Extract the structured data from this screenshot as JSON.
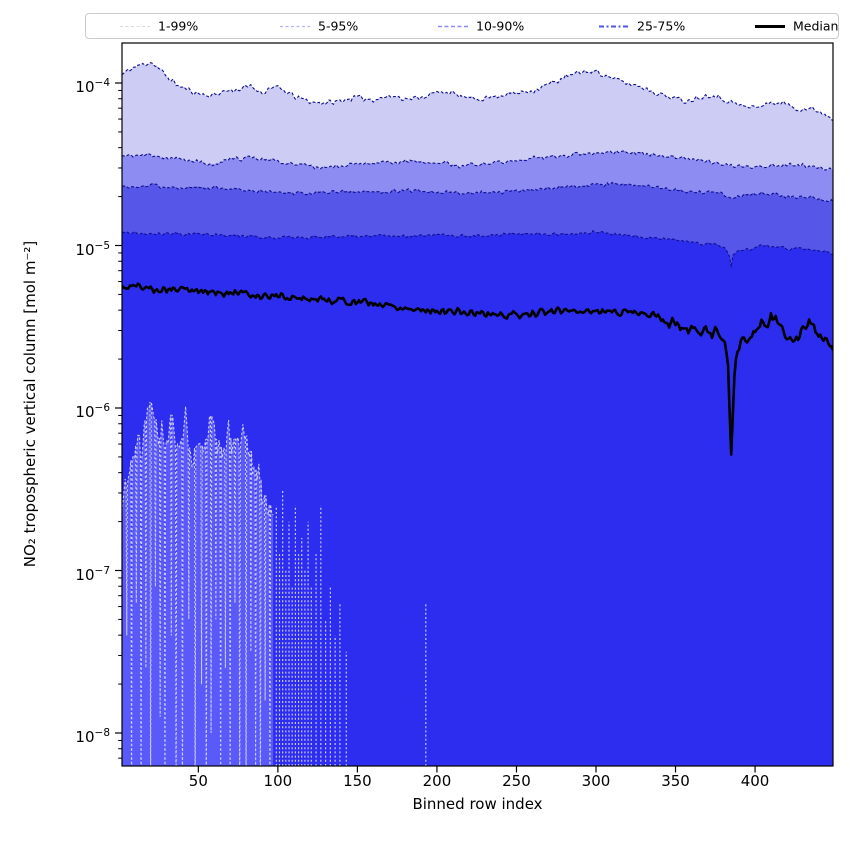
{
  "chart": {
    "xlabel": "Binned row index",
    "ylabel": "NO₂ tropospheric vertical column [mol m⁻²]",
    "x_ticks": [
      50,
      100,
      150,
      200,
      250,
      300,
      350,
      400
    ],
    "y_tick_exponents": [
      -4,
      -5,
      -6,
      -7,
      -8
    ],
    "axis_color": "#000000"
  },
  "chart_data": {
    "type": "area",
    "subtype": "percentile-fan",
    "title": "",
    "xlabel": "Binned row index",
    "ylabel": "NO₂ tropospheric vertical column [mol m⁻²]",
    "x_range": [
      2,
      449
    ],
    "ylim": [
      6.3e-09,
      0.000176
    ],
    "yscale": "log",
    "values_are_log10": true,
    "grid": false,
    "legend_position": "top",
    "legend": [
      {
        "label": "1-99%",
        "color": "#d7d7ee",
        "dash": "3,2.5",
        "width": 1.1
      },
      {
        "label": "5-95%",
        "color": "#b6b6f4",
        "dash": "3,2.5",
        "width": 1.2
      },
      {
        "label": "10-90%",
        "color": "#8b8bf4",
        "dash": "4,2.5",
        "width": 1.4
      },
      {
        "label": "25-75%",
        "color": "#5353e4",
        "dash": "5,2.5,2,2.5",
        "width": 1.9
      },
      {
        "label": "Median",
        "color": "#000000",
        "dash": "",
        "width": 3
      }
    ],
    "edge_color": "#0f0f8f",
    "bands": [
      {
        "name": "p99",
        "fill": "#ccccf5",
        "noise": 0.02,
        "anchors": [
          [
            2,
            -3.95
          ],
          [
            8,
            -3.91
          ],
          [
            14,
            -3.89
          ],
          [
            20,
            -3.87
          ],
          [
            24,
            -3.9
          ],
          [
            30,
            -3.96
          ],
          [
            38,
            -4.02
          ],
          [
            48,
            -4.06
          ],
          [
            58,
            -4.08
          ],
          [
            66,
            -4.05
          ],
          [
            75,
            -4.04
          ],
          [
            83,
            -4.02
          ],
          [
            90,
            -4.06
          ],
          [
            97,
            -4.02
          ],
          [
            104,
            -4.05
          ],
          [
            112,
            -4.09
          ],
          [
            122,
            -4.12
          ],
          [
            135,
            -4.12
          ],
          [
            148,
            -4.09
          ],
          [
            160,
            -4.1
          ],
          [
            172,
            -4.08
          ],
          [
            184,
            -4.1
          ],
          [
            196,
            -4.07
          ],
          [
            205,
            -4.05
          ],
          [
            214,
            -4.08
          ],
          [
            222,
            -4.1
          ],
          [
            232,
            -4.09
          ],
          [
            242,
            -4.07
          ],
          [
            252,
            -4.06
          ],
          [
            262,
            -4.04
          ],
          [
            272,
            -4.0
          ],
          [
            282,
            -3.96
          ],
          [
            292,
            -3.93
          ],
          [
            300,
            -3.93
          ],
          [
            308,
            -3.96
          ],
          [
            318,
            -4.0
          ],
          [
            328,
            -4.02
          ],
          [
            338,
            -4.06
          ],
          [
            348,
            -4.09
          ],
          [
            356,
            -4.11
          ],
          [
            364,
            -4.09
          ],
          [
            372,
            -4.07
          ],
          [
            380,
            -4.1
          ],
          [
            388,
            -4.13
          ],
          [
            396,
            -4.15
          ],
          [
            404,
            -4.14
          ],
          [
            412,
            -4.12
          ],
          [
            420,
            -4.13
          ],
          [
            428,
            -4.16
          ],
          [
            436,
            -4.16
          ],
          [
            442,
            -4.18
          ],
          [
            449,
            -4.22
          ]
        ]
      },
      {
        "name": "p95",
        "fill": "#8c8cf2",
        "noise": 0.016,
        "anchors": [
          [
            2,
            -4.45
          ],
          [
            15,
            -4.44
          ],
          [
            30,
            -4.46
          ],
          [
            45,
            -4.48
          ],
          [
            60,
            -4.5
          ],
          [
            72,
            -4.47
          ],
          [
            85,
            -4.46
          ],
          [
            100,
            -4.48
          ],
          [
            112,
            -4.5
          ],
          [
            125,
            -4.52
          ],
          [
            140,
            -4.51
          ],
          [
            155,
            -4.5
          ],
          [
            170,
            -4.49
          ],
          [
            185,
            -4.48
          ],
          [
            200,
            -4.49
          ],
          [
            215,
            -4.51
          ],
          [
            230,
            -4.5
          ],
          [
            245,
            -4.48
          ],
          [
            260,
            -4.46
          ],
          [
            275,
            -4.45
          ],
          [
            290,
            -4.44
          ],
          [
            305,
            -4.43
          ],
          [
            320,
            -4.42
          ],
          [
            335,
            -4.44
          ],
          [
            350,
            -4.46
          ],
          [
            365,
            -4.48
          ],
          [
            380,
            -4.5
          ],
          [
            395,
            -4.52
          ],
          [
            410,
            -4.51
          ],
          [
            425,
            -4.5
          ],
          [
            437,
            -4.52
          ],
          [
            449,
            -4.54
          ]
        ]
      },
      {
        "name": "p90",
        "fill": "#5656e9",
        "noise": 0.014,
        "anchors": [
          [
            2,
            -4.64
          ],
          [
            20,
            -4.63
          ],
          [
            40,
            -4.65
          ],
          [
            60,
            -4.64
          ],
          [
            80,
            -4.66
          ],
          [
            100,
            -4.67
          ],
          [
            120,
            -4.68
          ],
          [
            140,
            -4.67
          ],
          [
            160,
            -4.67
          ],
          [
            180,
            -4.66
          ],
          [
            200,
            -4.67
          ],
          [
            220,
            -4.68
          ],
          [
            240,
            -4.67
          ],
          [
            260,
            -4.66
          ],
          [
            280,
            -4.64
          ],
          [
            300,
            -4.63
          ],
          [
            320,
            -4.62
          ],
          [
            335,
            -4.64
          ],
          [
            350,
            -4.66
          ],
          [
            365,
            -4.67
          ],
          [
            378,
            -4.68
          ],
          [
            386,
            -4.71
          ],
          [
            394,
            -4.69
          ],
          [
            404,
            -4.68
          ],
          [
            414,
            -4.69
          ],
          [
            424,
            -4.7
          ],
          [
            436,
            -4.71
          ],
          [
            449,
            -4.73
          ]
        ]
      },
      {
        "name": "p75",
        "fill": "#2d2df0",
        "noise": 0.012,
        "anchors": [
          [
            2,
            -4.92
          ],
          [
            25,
            -4.93
          ],
          [
            50,
            -4.93
          ],
          [
            75,
            -4.94
          ],
          [
            100,
            -4.95
          ],
          [
            125,
            -4.95
          ],
          [
            150,
            -4.94
          ],
          [
            175,
            -4.94
          ],
          [
            200,
            -4.94
          ],
          [
            225,
            -4.94
          ],
          [
            250,
            -4.93
          ],
          [
            275,
            -4.93
          ],
          [
            300,
            -4.92
          ],
          [
            315,
            -4.93
          ],
          [
            330,
            -4.95
          ],
          [
            345,
            -4.96
          ],
          [
            360,
            -4.98
          ],
          [
            372,
            -4.99
          ],
          [
            381,
            -5.01
          ],
          [
            384,
            -5.06
          ],
          [
            385,
            -5.13
          ],
          [
            386,
            -5.06
          ],
          [
            390,
            -5.03
          ],
          [
            398,
            -5.02
          ],
          [
            406,
            -5.0
          ],
          [
            414,
            -5.01
          ],
          [
            422,
            -5.02
          ],
          [
            430,
            -5.02
          ],
          [
            440,
            -5.03
          ],
          [
            449,
            -5.05
          ]
        ]
      }
    ],
    "median": {
      "color": "#000000",
      "width": 2.6,
      "noise": 0.028,
      "noise_ramp": [
        300,
        0.035
      ],
      "anchors": [
        [
          2,
          -5.26
        ],
        [
          12,
          -5.25
        ],
        [
          22,
          -5.27
        ],
        [
          35,
          -5.27
        ],
        [
          50,
          -5.28
        ],
        [
          65,
          -5.29
        ],
        [
          80,
          -5.3
        ],
        [
          95,
          -5.31
        ],
        [
          110,
          -5.32
        ],
        [
          125,
          -5.33
        ],
        [
          140,
          -5.34
        ],
        [
          155,
          -5.35
        ],
        [
          170,
          -5.37
        ],
        [
          185,
          -5.39
        ],
        [
          200,
          -5.4
        ],
        [
          215,
          -5.41
        ],
        [
          230,
          -5.42
        ],
        [
          245,
          -5.43
        ],
        [
          258,
          -5.42
        ],
        [
          270,
          -5.41
        ],
        [
          282,
          -5.4
        ],
        [
          295,
          -5.4
        ],
        [
          308,
          -5.41
        ],
        [
          320,
          -5.4
        ],
        [
          332,
          -5.42
        ],
        [
          344,
          -5.46
        ],
        [
          356,
          -5.51
        ],
        [
          366,
          -5.54
        ],
        [
          374,
          -5.53
        ],
        [
          380,
          -5.58
        ],
        [
          383,
          -5.7
        ],
        [
          385,
          -6.31
        ],
        [
          387,
          -5.8
        ],
        [
          389,
          -5.65
        ],
        [
          393,
          -5.58
        ],
        [
          398,
          -5.55
        ],
        [
          403,
          -5.5
        ],
        [
          408,
          -5.46
        ],
        [
          413,
          -5.45
        ],
        [
          418,
          -5.5
        ],
        [
          423,
          -5.56
        ],
        [
          427,
          -5.6
        ],
        [
          430,
          -5.54
        ],
        [
          434,
          -5.49
        ],
        [
          438,
          -5.5
        ],
        [
          442,
          -5.55
        ],
        [
          446,
          -5.6
        ],
        [
          449,
          -5.63
        ]
      ]
    },
    "p1": {
      "fill": "#5a5afa",
      "edge": "#c9c9f4",
      "noise": 0.17,
      "bins": [
        2,
        97
      ],
      "anchors": [
        [
          2,
          -6.6
        ],
        [
          6,
          -6.4
        ],
        [
          10,
          -6.2
        ],
        [
          14,
          -6.3
        ],
        [
          18,
          -6.05
        ],
        [
          22,
          -6.0
        ],
        [
          26,
          -6.25
        ],
        [
          30,
          -6.1
        ],
        [
          34,
          -6.2
        ],
        [
          38,
          -6.15
        ],
        [
          42,
          -6.1
        ],
        [
          46,
          -6.3
        ],
        [
          50,
          -6.2
        ],
        [
          54,
          -6.25
        ],
        [
          58,
          -6.15
        ],
        [
          62,
          -6.2
        ],
        [
          66,
          -6.3
        ],
        [
          70,
          -6.15
        ],
        [
          74,
          -6.25
        ],
        [
          78,
          -6.2
        ],
        [
          82,
          -6.3
        ],
        [
          86,
          -6.35
        ],
        [
          90,
          -6.5
        ],
        [
          94,
          -6.55
        ],
        [
          97,
          -6.6
        ]
      ],
      "dips": [
        [
          5,
          -7.4
        ],
        [
          8,
          -8.6
        ],
        [
          11,
          -7.2
        ],
        [
          14,
          -8.6
        ],
        [
          17,
          -7.6
        ],
        [
          20,
          -8.6
        ],
        [
          23,
          -7.1
        ],
        [
          26,
          -7.9
        ],
        [
          29,
          -8.6
        ],
        [
          33,
          -7.4
        ],
        [
          36,
          -8.6
        ],
        [
          40,
          -8.6
        ],
        [
          44,
          -7.3
        ],
        [
          48,
          -8.6
        ],
        [
          52,
          -7.7
        ],
        [
          55,
          -8.6
        ],
        [
          58,
          -8.0
        ],
        [
          61,
          -7.3
        ],
        [
          64,
          -8.6
        ],
        [
          67,
          -7.6
        ],
        [
          70,
          -8.6
        ],
        [
          73,
          -7.2
        ],
        [
          76,
          -8.6
        ],
        [
          80,
          -8.6
        ],
        [
          83,
          -7.5
        ],
        [
          86,
          -8.2
        ],
        [
          89,
          -8.6
        ],
        [
          92,
          -7.8
        ],
        [
          95,
          -8.6
        ]
      ],
      "spikes": [
        [
          99,
          -6.6
        ],
        [
          101,
          -6.9
        ],
        [
          103,
          -6.5
        ],
        [
          105,
          -7.0
        ],
        [
          107,
          -6.7
        ],
        [
          109,
          -7.1
        ],
        [
          111,
          -6.6
        ],
        [
          113,
          -6.9
        ],
        [
          115,
          -6.8
        ],
        [
          117,
          -7.0
        ],
        [
          119,
          -6.7
        ],
        [
          121,
          -7.1
        ],
        [
          124,
          -6.9
        ],
        [
          127,
          -6.6
        ],
        [
          130,
          -7.3
        ],
        [
          133,
          -7.1
        ],
        [
          136,
          -7.4
        ],
        [
          139,
          -7.2
        ],
        [
          143,
          -7.5
        ],
        [
          193,
          -7.2
        ]
      ]
    }
  }
}
